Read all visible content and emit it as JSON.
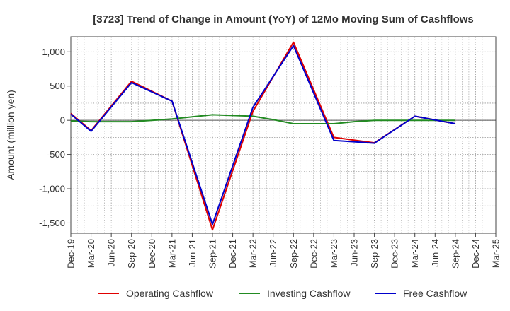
{
  "chart_data": {
    "type": "line",
    "title": "[3723]  Trend of Change in Amount (YoY) of 12Mo Moving Sum of Cashflows",
    "xlabel": "",
    "ylabel": "Amount (million yen)",
    "ylim": [
      -1650,
      1220
    ],
    "yticks": [
      1000,
      500,
      0,
      -500,
      -1000,
      -1500
    ],
    "ytick_labels": [
      "1,000",
      "500",
      "0",
      "-500",
      "-1,000",
      "-1,500"
    ],
    "grid": true,
    "legend_position": "bottom",
    "categories": [
      "Dec-19",
      "Mar-20",
      "Jun-20",
      "Sep-20",
      "Dec-20",
      "Mar-21",
      "Jun-21",
      "Sep-21",
      "Dec-21",
      "Mar-22",
      "Jun-22",
      "Sep-22",
      "Dec-22",
      "Mar-23",
      "Jun-23",
      "Sep-23",
      "Dec-23",
      "Mar-24",
      "Jun-24",
      "Sep-24",
      "Dec-24",
      "Mar-25"
    ],
    "series": [
      {
        "name": "Operating Cashflow",
        "color": "#e00000",
        "values": [
          100,
          -150,
          null,
          570,
          null,
          280,
          null,
          -1600,
          null,
          130,
          null,
          1140,
          null,
          -250,
          null,
          -330,
          null,
          60,
          null,
          -50,
          null,
          null
        ]
      },
      {
        "name": "Investing Cashflow",
        "color": "#228b22",
        "values": [
          -10,
          -20,
          -20,
          -20,
          0,
          20,
          50,
          80,
          70,
          60,
          10,
          -50,
          -50,
          -50,
          -20,
          0,
          0,
          0,
          0,
          0,
          null,
          null
        ]
      },
      {
        "name": "Free Cashflow",
        "color": "#0000cc",
        "values": [
          90,
          -160,
          null,
          550,
          null,
          280,
          null,
          -1520,
          null,
          190,
          null,
          1090,
          null,
          -295,
          null,
          -335,
          null,
          60,
          null,
          -50,
          null,
          null
        ]
      }
    ]
  }
}
